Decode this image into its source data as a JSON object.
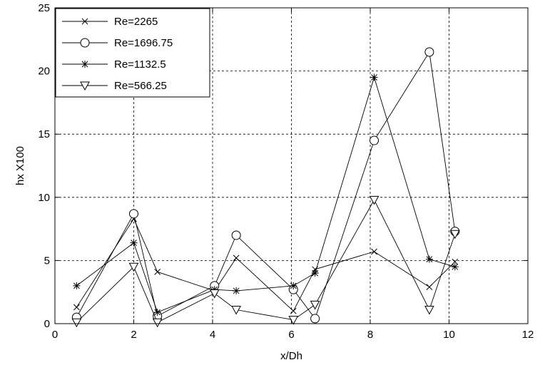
{
  "chart_data": {
    "type": "line",
    "xlabel": "x/Dh",
    "ylabel": "hx X100",
    "xlim": [
      0,
      12
    ],
    "ylim": [
      0,
      25
    ],
    "xticks": [
      0,
      2,
      4,
      6,
      8,
      10,
      12
    ],
    "yticks": [
      0,
      5,
      10,
      15,
      20,
      25
    ],
    "grid": true,
    "legend_position": "top-left",
    "line_color": "#000000",
    "series": [
      {
        "name": "Re=2265",
        "marker": "x",
        "x": [
          0.55,
          2.0,
          2.6,
          4.05,
          4.6,
          6.05,
          6.6,
          8.1,
          9.5,
          10.15
        ],
        "y": [
          1.3,
          8.3,
          4.1,
          2.6,
          5.2,
          1.0,
          4.3,
          5.7,
          2.9,
          4.9
        ]
      },
      {
        "name": "Re=1696.75",
        "marker": "circle",
        "x": [
          0.55,
          2.0,
          2.6,
          4.05,
          4.6,
          6.05,
          6.6,
          8.1,
          9.5,
          10.15
        ],
        "y": [
          0.5,
          8.7,
          0.6,
          3.0,
          7.0,
          2.7,
          0.4,
          14.5,
          21.5,
          7.3
        ]
      },
      {
        "name": "Re=1132.5",
        "marker": "star",
        "x": [
          0.55,
          2.0,
          2.6,
          4.05,
          4.6,
          6.05,
          6.6,
          8.1,
          9.5,
          10.15
        ],
        "y": [
          3.0,
          6.4,
          0.9,
          2.7,
          2.6,
          3.0,
          4.0,
          19.5,
          5.1,
          4.5
        ]
      },
      {
        "name": "Re=566.25",
        "marker": "triangle-down",
        "x": [
          0.55,
          2.0,
          2.6,
          4.05,
          4.6,
          6.05,
          6.6,
          8.1,
          9.5,
          10.15
        ],
        "y": [
          0.1,
          4.5,
          0.1,
          2.4,
          1.1,
          0.3,
          1.5,
          9.8,
          1.1,
          7.1
        ]
      }
    ]
  }
}
